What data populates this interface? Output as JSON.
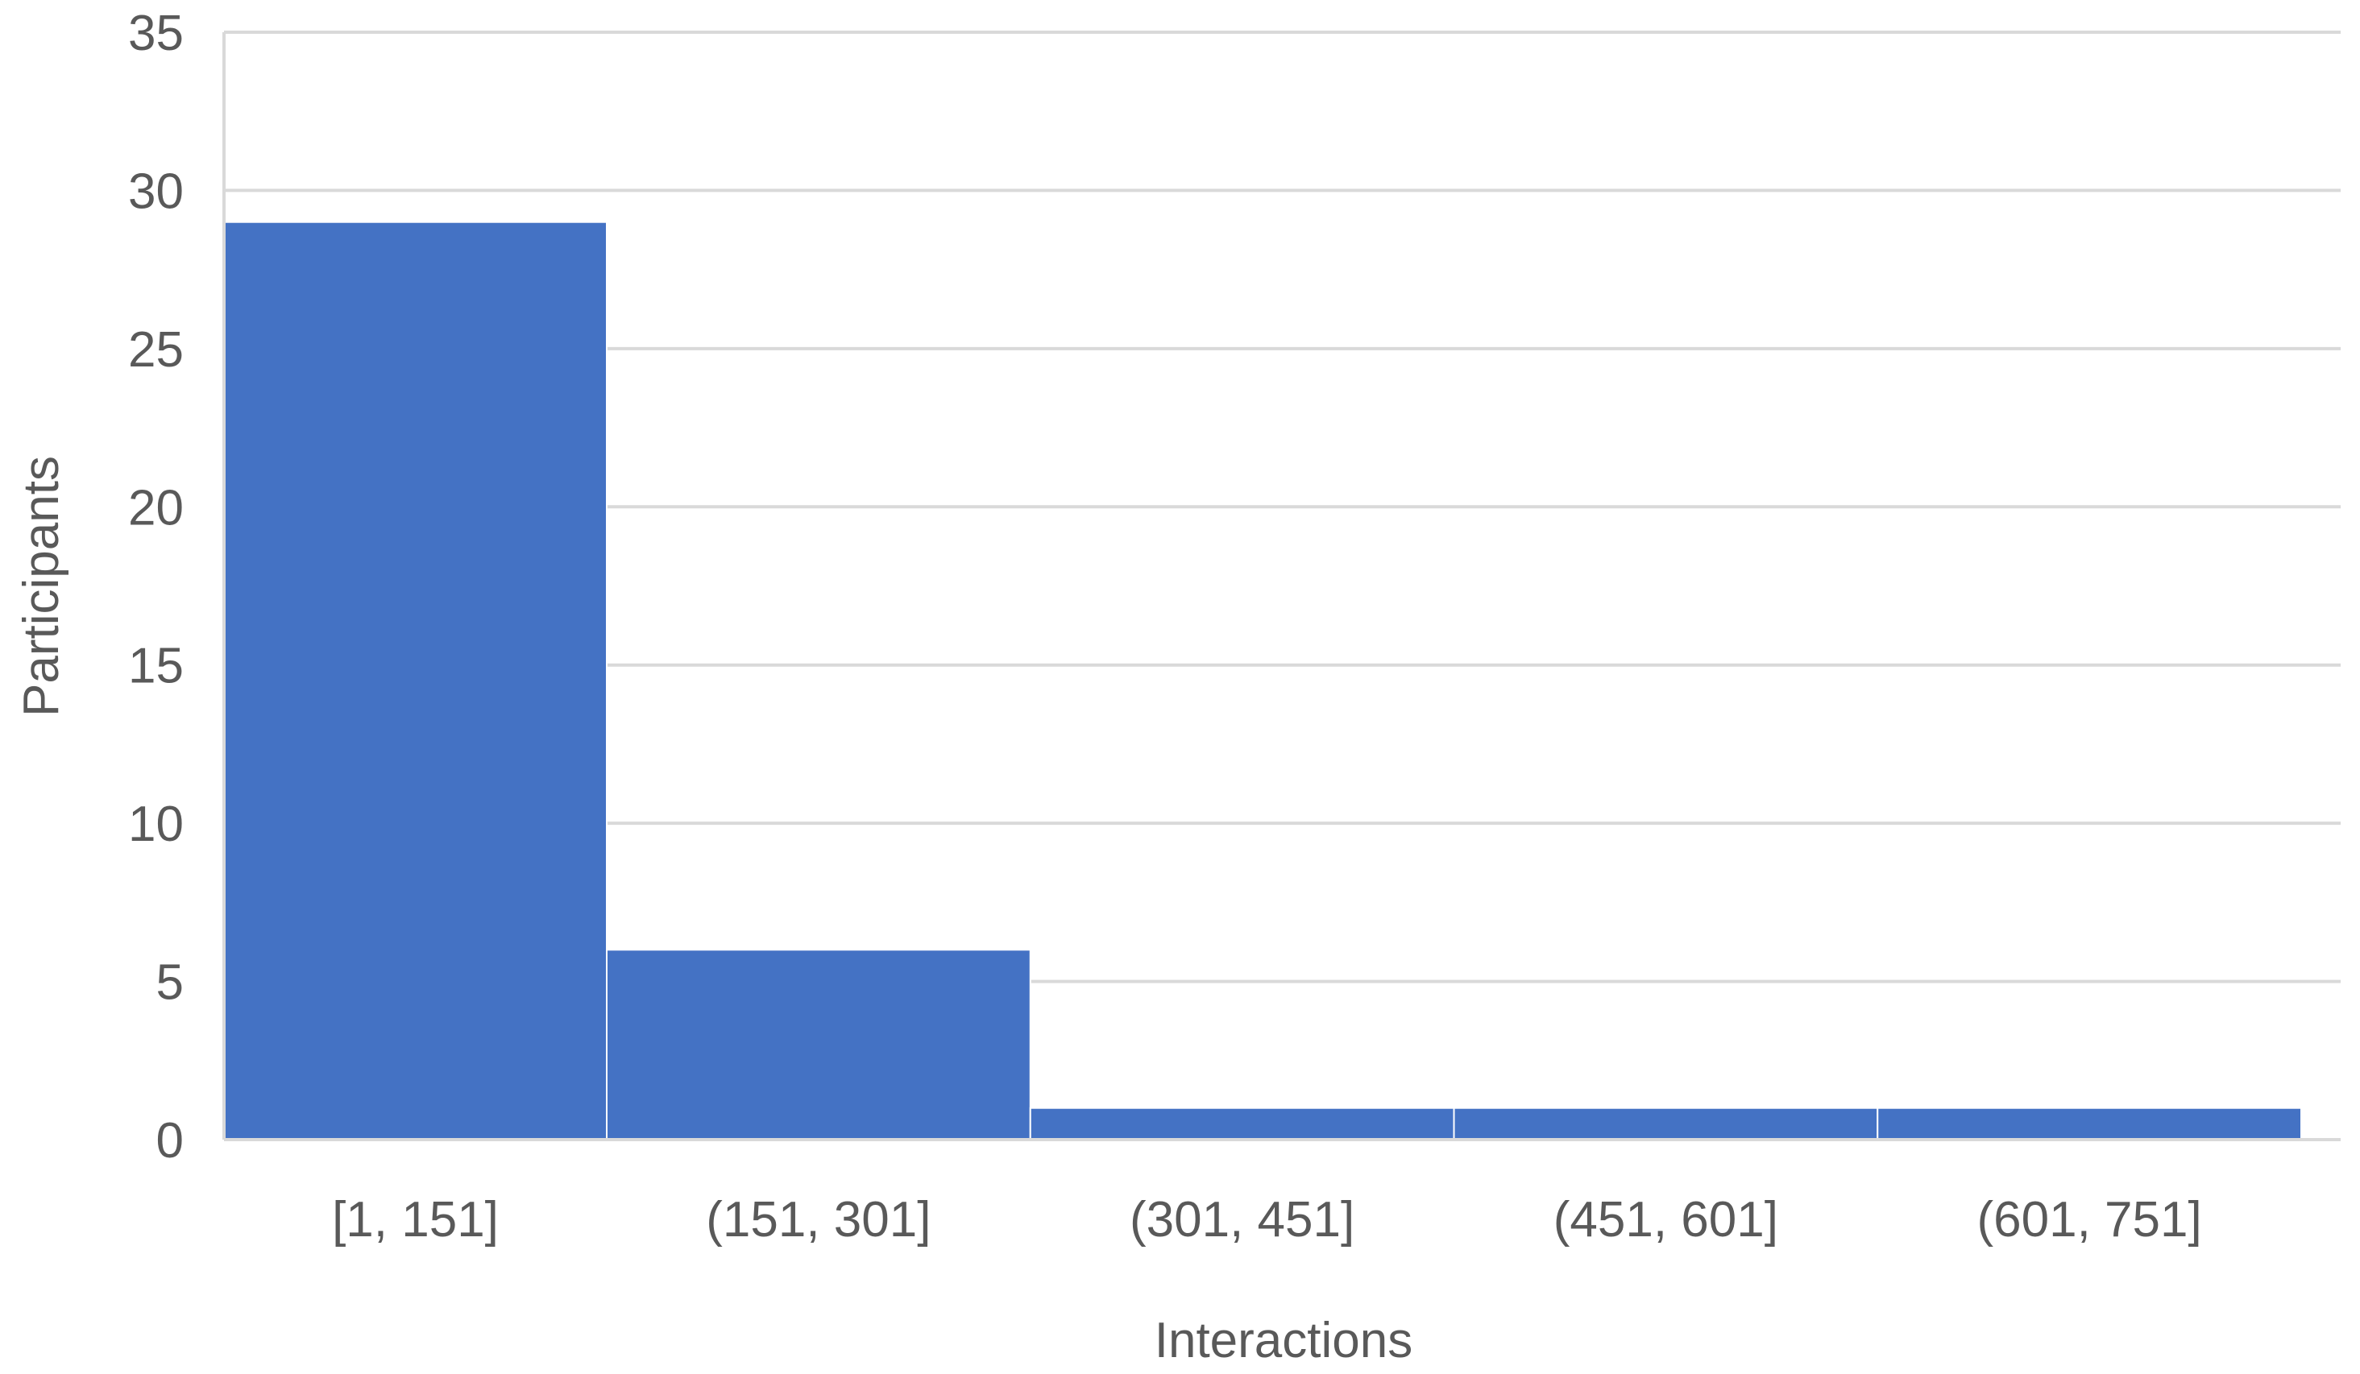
{
  "chart_data": {
    "type": "bar",
    "title": "",
    "xlabel": "Interactions",
    "ylabel": "Participants",
    "categories": [
      "[1, 151]",
      "(151, 301]",
      "(301, 451]",
      "(451, 601]",
      "(601, 751]"
    ],
    "values": [
      29,
      6,
      1,
      1,
      1
    ],
    "ylim": [
      0,
      35
    ],
    "yticks": [
      0,
      5,
      10,
      15,
      20,
      25,
      30,
      35
    ],
    "grid": true,
    "legend": "none",
    "colors": {
      "bar": "#4472C4",
      "grid": "#D9D9D9",
      "axis": "#D9D9D9",
      "text": "#595959"
    }
  }
}
